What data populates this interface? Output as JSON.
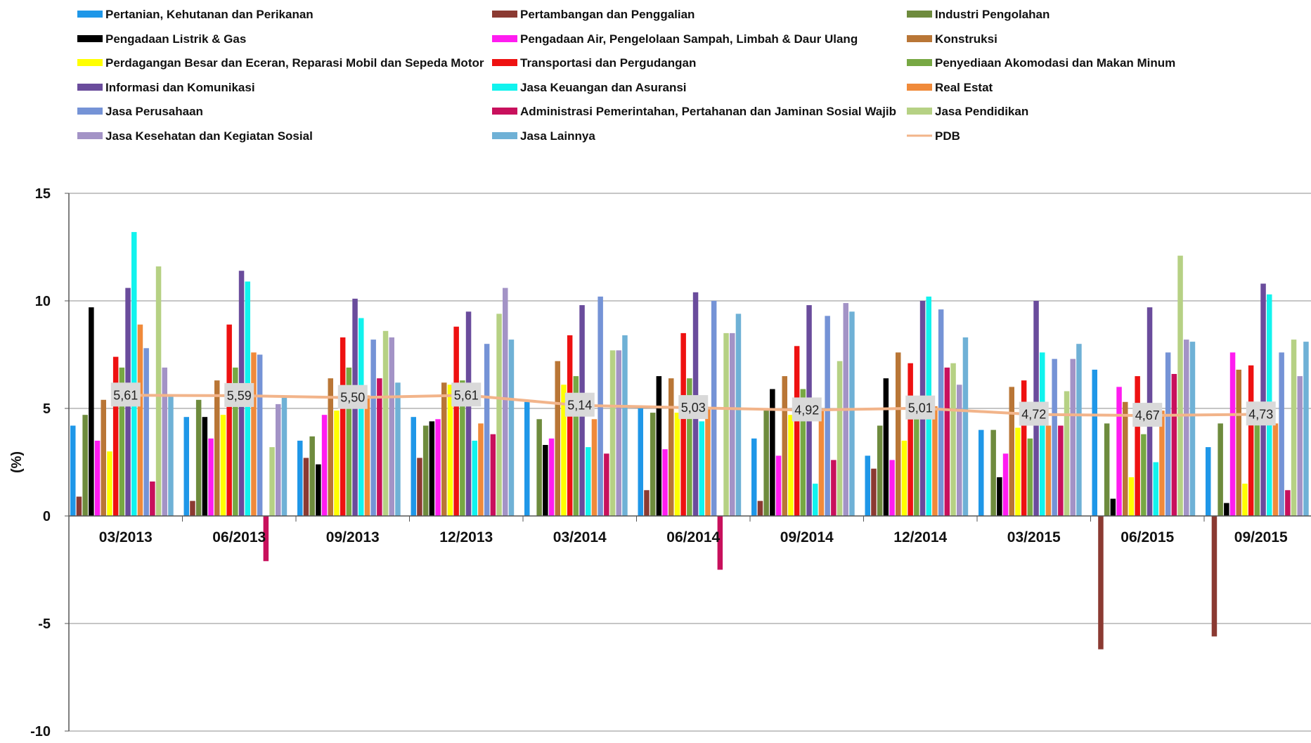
{
  "chart_data": {
    "type": "bar",
    "ylabel": "(%)",
    "ylim": [
      -10,
      15
    ],
    "yticks": [
      15,
      10,
      5,
      0,
      -5,
      -10
    ],
    "ytick_labels": [
      "15",
      "10",
      "5",
      "0",
      "-5",
      "-10"
    ],
    "grid": true,
    "legend_position": "top",
    "categories": [
      "03/2013",
      "06/2013",
      "09/2013",
      "12/2013",
      "03/2014",
      "06/2014",
      "09/2014",
      "12/2014",
      "03/2015",
      "06/2015",
      "09/2015"
    ],
    "series": [
      {
        "name": "Pertanian, Kehutanan dan Perikanan",
        "color": "#1f97e8",
        "values": [
          4.2,
          4.6,
          3.5,
          4.6,
          5.3,
          5.0,
          3.6,
          2.8,
          4.0,
          6.8,
          3.2
        ]
      },
      {
        "name": "Pertambangan dan Penggalian",
        "color": "#8b3a32",
        "values": [
          0.9,
          0.7,
          2.7,
          2.7,
          0.0,
          1.2,
          0.7,
          2.2,
          0.0,
          -6.2,
          -5.6
        ]
      },
      {
        "name": "Industri Pengolahan",
        "color": "#6e8b3d",
        "values": [
          4.7,
          5.4,
          3.7,
          4.2,
          4.5,
          4.8,
          5.0,
          4.2,
          4.0,
          4.3,
          4.3
        ]
      },
      {
        "name": "Pengadaan Listrik & Gas",
        "color": "#000000",
        "values": [
          9.7,
          4.6,
          2.4,
          4.4,
          3.3,
          6.5,
          5.9,
          6.4,
          1.8,
          0.8,
          0.6
        ]
      },
      {
        "name": "Pengadaan Air, Pengelolaan Sampah, Limbah & Daur Ulang",
        "color": "#ff1cf0",
        "values": [
          3.5,
          3.6,
          4.7,
          4.5,
          3.6,
          3.1,
          2.8,
          2.6,
          2.9,
          6.0,
          7.6
        ]
      },
      {
        "name": "Konstruksi",
        "color": "#b97636",
        "values": [
          5.4,
          6.3,
          6.4,
          6.2,
          7.2,
          6.4,
          6.5,
          7.6,
          6.0,
          5.3,
          6.8
        ]
      },
      {
        "name": "Perdagangan Besar dan Eceran, Reparasi Mobil dan Sepeda Motor",
        "color": "#ffff00",
        "values": [
          3.0,
          4.7,
          4.9,
          6.1,
          6.1,
          4.8,
          4.7,
          3.5,
          4.1,
          1.8,
          1.5
        ]
      },
      {
        "name": "Transportasi dan Pergudangan",
        "color": "#ee1111",
        "values": [
          7.4,
          8.9,
          8.3,
          8.8,
          8.4,
          8.5,
          7.9,
          7.1,
          6.3,
          6.5,
          7.0
        ]
      },
      {
        "name": "Penyediaan Akomodasi dan Makan Minum",
        "color": "#77a843",
        "values": [
          6.9,
          6.9,
          6.9,
          6.3,
          6.5,
          6.4,
          5.9,
          4.8,
          3.6,
          3.8,
          4.6
        ]
      },
      {
        "name": "Informasi dan Komunikasi",
        "color": "#6a4c9c",
        "values": [
          10.6,
          11.4,
          10.1,
          9.5,
          9.8,
          10.4,
          9.8,
          10.0,
          10.0,
          9.7,
          10.8
        ]
      },
      {
        "name": "Jasa Keuangan dan Asuransi",
        "color": "#11f3ee",
        "values": [
          13.2,
          10.9,
          9.2,
          3.5,
          3.2,
          4.4,
          1.5,
          10.2,
          7.6,
          2.5,
          10.3
        ]
      },
      {
        "name": "Real Estat",
        "color": "#f08a3a",
        "values": [
          8.9,
          7.6,
          5.6,
          4.3,
          4.5,
          5.0,
          4.9,
          5.1,
          4.2,
          4.9,
          4.3
        ]
      },
      {
        "name": "Jasa Perusahaan",
        "color": "#7593d6",
        "values": [
          7.8,
          7.5,
          8.2,
          8.0,
          10.2,
          10.0,
          9.3,
          9.6,
          7.3,
          7.6,
          7.6
        ]
      },
      {
        "name": "Administrasi Pemerintahan, Pertahanan dan Jaminan Sosial Wajib",
        "color": "#c8105c",
        "values": [
          1.6,
          -2.1,
          6.4,
          3.8,
          2.9,
          -2.5,
          2.6,
          6.9,
          4.2,
          6.6,
          1.2
        ]
      },
      {
        "name": "Jasa Pendidikan",
        "color": "#b6d184",
        "values": [
          11.6,
          3.2,
          8.6,
          9.4,
          7.7,
          8.5,
          7.2,
          7.1,
          5.8,
          12.1,
          8.2
        ]
      },
      {
        "name": "Jasa Kesehatan dan Kegiatan Sosial",
        "color": "#a393c6",
        "values": [
          6.9,
          5.2,
          8.3,
          10.6,
          7.7,
          8.5,
          9.9,
          6.1,
          7.3,
          8.2,
          6.5
        ]
      },
      {
        "name": "Jasa Lainnya",
        "color": "#6fb1d6",
        "values": [
          5.6,
          5.5,
          6.2,
          8.2,
          8.4,
          9.4,
          9.5,
          8.3,
          8.0,
          8.1,
          8.1
        ]
      }
    ],
    "line_series": {
      "name": "PDB",
      "color": "#f2b48a",
      "values": [
        5.61,
        5.59,
        5.5,
        5.61,
        5.14,
        5.03,
        4.92,
        5.01,
        4.72,
        4.67,
        4.73
      ],
      "labels": [
        "5,61",
        "5,59",
        "5,50",
        "5,61",
        "5,14",
        "5,03",
        "4,92",
        "5,01",
        "4,72",
        "4,67",
        "4,73"
      ]
    },
    "colors": {
      "axis": "#555555",
      "grid": "#8c8c8c",
      "label_box": "#d9d9d9",
      "text": "#111111"
    }
  }
}
